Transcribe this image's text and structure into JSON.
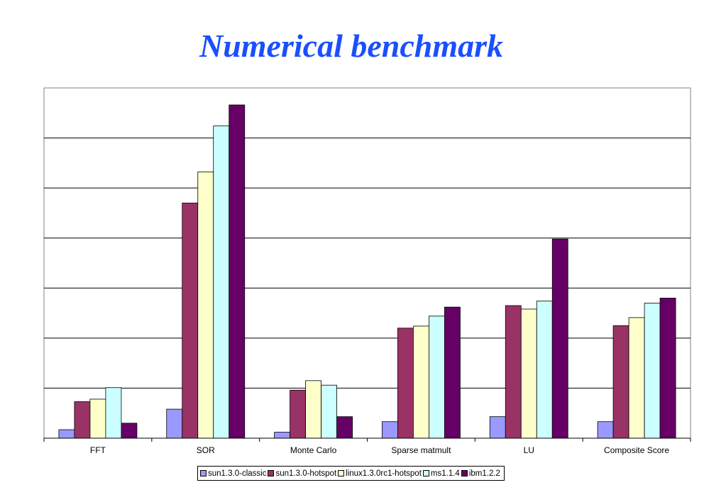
{
  "chart_data": {
    "type": "bar",
    "title": "Numerical benchmark",
    "categories": [
      "FFT",
      "SOR",
      "Monte Carlo",
      "Sparse matmult",
      "LU",
      "Composite Score"
    ],
    "ylim": [
      0,
      7
    ],
    "grid": true,
    "legend_position": "bottom",
    "series": [
      {
        "name": "sun1.3.0-classic",
        "color": "#9999ff",
        "values": [
          0.17,
          0.58,
          0.12,
          0.33,
          0.43,
          0.33
        ]
      },
      {
        "name": "sun1.3.0-hotspot",
        "color": "#993366",
        "values": [
          0.73,
          4.7,
          0.96,
          2.2,
          2.65,
          2.25
        ]
      },
      {
        "name": "linux1.3.0rc1-hotspot",
        "color": "#ffffcc",
        "values": [
          0.78,
          5.32,
          1.15,
          2.24,
          2.58,
          2.41
        ]
      },
      {
        "name": "ms1.1.4",
        "color": "#ccffff",
        "values": [
          1.01,
          6.24,
          1.06,
          2.44,
          2.74,
          2.7
        ]
      },
      {
        "name": "ibm1.2.2",
        "color": "#660066",
        "values": [
          0.3,
          6.66,
          0.43,
          2.62,
          3.98,
          2.8
        ]
      }
    ]
  }
}
